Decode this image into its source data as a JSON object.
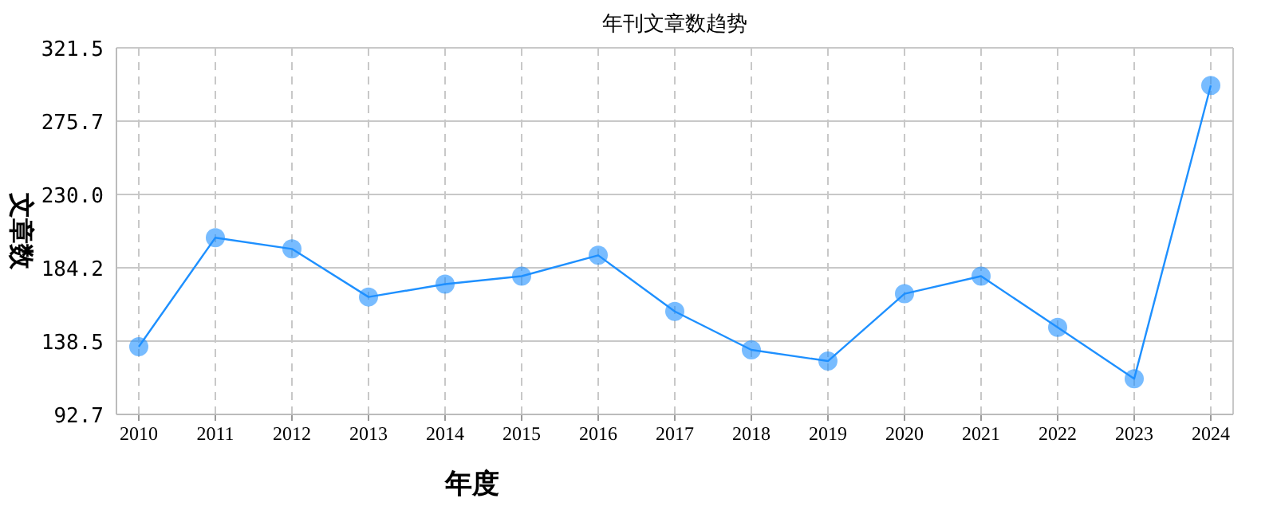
{
  "chart_data": {
    "type": "line",
    "title": "年刊文章数趋势",
    "xlabel": "年度",
    "ylabel": "文章数",
    "categories": [
      "2010",
      "2011",
      "2012",
      "2013",
      "2014",
      "2015",
      "2016",
      "2017",
      "2018",
      "2019",
      "2020",
      "2021",
      "2022",
      "2023",
      "2024"
    ],
    "series": [
      {
        "color": "#1e90ff",
        "values": [
          135,
          203,
          196,
          166,
          174,
          179,
          192,
          157,
          133,
          126,
          168,
          179,
          147,
          115,
          298
        ]
      }
    ],
    "ylim": [
      92.7,
      321.5
    ],
    "yticks": [
      92.7,
      138.5,
      184.2,
      {
        "value": 230,
        "label": "230.0"
      },
      275.7,
      321.5
    ],
    "grid": true,
    "marker": "circle",
    "line_style": "solid"
  }
}
